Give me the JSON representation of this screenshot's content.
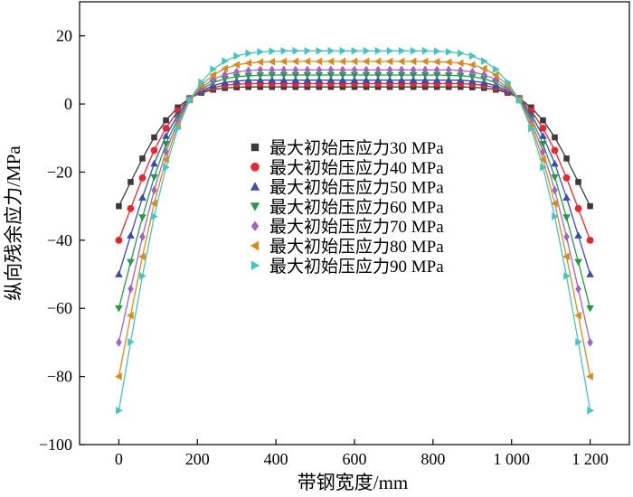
{
  "chart_data": {
    "type": "line",
    "title": "",
    "xlabel": "带钢宽度/mm",
    "ylabel": "纵向残余应力/MPa",
    "xlim": [
      -100,
      1300
    ],
    "ylim": [
      -100,
      30
    ],
    "grid": false,
    "legend_position": "center",
    "x_ticks": [
      0,
      200,
      400,
      600,
      800,
      1000,
      1200
    ],
    "x_tick_labels": [
      "0",
      "200",
      "400",
      "600",
      "800",
      "1 000",
      "1 200"
    ],
    "y_ticks": [
      20,
      0,
      -20,
      -40,
      -60,
      -80,
      -100
    ],
    "y_tick_labels": [
      "20",
      "0",
      "−20",
      "−40",
      "−60",
      "−80",
      "−100"
    ],
    "x": [
      0,
      30,
      60,
      90,
      120,
      150,
      180,
      210,
      240,
      270,
      300,
      330,
      360,
      390,
      420,
      450,
      480,
      510,
      540,
      570,
      600,
      630,
      660,
      690,
      720,
      750,
      780,
      810,
      840,
      870,
      900,
      930,
      960,
      990,
      1020,
      1050,
      1080,
      1110,
      1140,
      1170,
      1200
    ],
    "series": [
      {
        "name": "最大初始压应力30 MPa",
        "color": "#3b3b3b",
        "marker": "square",
        "peak": 30,
        "values": [
          -30,
          -22.9,
          -16.0,
          -9.8,
          -4.8,
          -1.0,
          1.7,
          3.3,
          4.2,
          4.7,
          4.9,
          5.0,
          5.0,
          5.0,
          5.0,
          5.0,
          5.0,
          5.0,
          5.0,
          5.0,
          5.0,
          5.0,
          5.0,
          5.0,
          5.0,
          5.0,
          5.0,
          5.0,
          5.0,
          5.0,
          4.9,
          4.7,
          4.2,
          3.3,
          1.7,
          -1.0,
          -4.8,
          -9.8,
          -16.0,
          -22.9,
          -30
        ]
      },
      {
        "name": "最大初始压应力40 MPa",
        "color": "#e8262d",
        "marker": "circle",
        "peak": 40,
        "values": [
          -40,
          -30.7,
          -21.7,
          -13.6,
          -7.1,
          -2.0,
          1.6,
          3.6,
          4.8,
          5.5,
          5.8,
          6.0,
          6.0,
          6.0,
          6.0,
          6.0,
          6.0,
          6.0,
          6.0,
          6.0,
          6.0,
          6.0,
          6.0,
          6.0,
          6.0,
          6.0,
          6.0,
          6.0,
          6.0,
          6.0,
          5.8,
          5.5,
          4.8,
          3.6,
          1.6,
          -2.0,
          -7.1,
          -13.6,
          -21.7,
          -30.7,
          -40
        ]
      },
      {
        "name": "最大初始压应力50 MPa",
        "color": "#3b4bb3",
        "marker": "triangle-up",
        "peak": 50,
        "values": [
          -50,
          -38.6,
          -27.5,
          -17.5,
          -9.4,
          -3.1,
          1.5,
          3.9,
          5.4,
          6.3,
          6.7,
          7.0,
          7.0,
          7.0,
          7.0,
          7.0,
          7.0,
          7.0,
          7.0,
          7.0,
          7.0,
          7.0,
          7.0,
          7.0,
          7.0,
          7.0,
          7.0,
          7.0,
          7.0,
          7.0,
          6.7,
          6.3,
          5.4,
          3.9,
          1.5,
          -3.1,
          -9.4,
          -17.5,
          -27.5,
          -38.6,
          -50
        ]
      },
      {
        "name": "最大初始压应力60 MPa",
        "color": "#239b45",
        "marker": "triangle-down",
        "peak": 60,
        "values": [
          -60,
          -46.4,
          -33.3,
          -21.5,
          -11.7,
          -4.1,
          1.4,
          4.3,
          6.3,
          7.4,
          8.0,
          8.3,
          8.4,
          8.5,
          8.5,
          8.5,
          8.5,
          8.5,
          8.5,
          8.5,
          8.5,
          8.5,
          8.5,
          8.5,
          8.5,
          8.5,
          8.5,
          8.5,
          8.4,
          8.3,
          8.0,
          7.4,
          6.3,
          4.3,
          1.4,
          -4.1,
          -11.7,
          -21.5,
          -33.3,
          -46.4,
          -60
        ]
      },
      {
        "name": "最大初始压应力70 MPa",
        "color": "#a264c4",
        "marker": "diamond",
        "peak": 70,
        "values": [
          -70,
          -54.3,
          -39.0,
          -25.3,
          -14.0,
          -5.1,
          1.3,
          4.8,
          7.2,
          8.6,
          9.4,
          9.8,
          10.0,
          10.0,
          10.0,
          10.0,
          10.0,
          10.0,
          10.0,
          10.0,
          10.0,
          10.0,
          10.0,
          10.0,
          10.0,
          10.0,
          10.0,
          10.0,
          10.0,
          9.8,
          9.4,
          8.6,
          7.2,
          4.8,
          1.3,
          -5.1,
          -14.0,
          -25.3,
          -39.0,
          -54.3,
          -70
        ]
      },
      {
        "name": "最大初始压应力80 MPa",
        "color": "#d98b17",
        "marker": "triangle-left",
        "peak": 80,
        "values": [
          -80,
          -62.1,
          -44.8,
          -29.2,
          -16.3,
          -6.2,
          1.2,
          5.5,
          8.5,
          10.4,
          11.5,
          12.0,
          12.3,
          12.4,
          12.5,
          12.5,
          12.5,
          12.5,
          12.5,
          12.5,
          12.5,
          12.5,
          12.5,
          12.5,
          12.5,
          12.5,
          12.5,
          12.4,
          12.3,
          12.0,
          11.5,
          10.4,
          8.5,
          5.5,
          1.2,
          -6.2,
          -16.3,
          -29.2,
          -44.8,
          -62.1,
          -80
        ]
      },
      {
        "name": "最大初始压应力90 MPa",
        "color": "#46c4c1",
        "marker": "triangle-right",
        "peak": 90,
        "values": [
          -90,
          -69.9,
          -50.5,
          -33.0,
          -18.6,
          -7.2,
          1.1,
          6.4,
          10.2,
          12.6,
          14.1,
          14.9,
          15.3,
          15.5,
          15.6,
          15.6,
          15.6,
          15.6,
          15.6,
          15.6,
          15.6,
          15.6,
          15.6,
          15.6,
          15.6,
          15.6,
          15.6,
          15.5,
          15.3,
          14.9,
          14.1,
          12.6,
          10.2,
          6.4,
          1.1,
          -7.2,
          -18.6,
          -33.0,
          -50.5,
          -69.9,
          -90
        ]
      }
    ]
  }
}
